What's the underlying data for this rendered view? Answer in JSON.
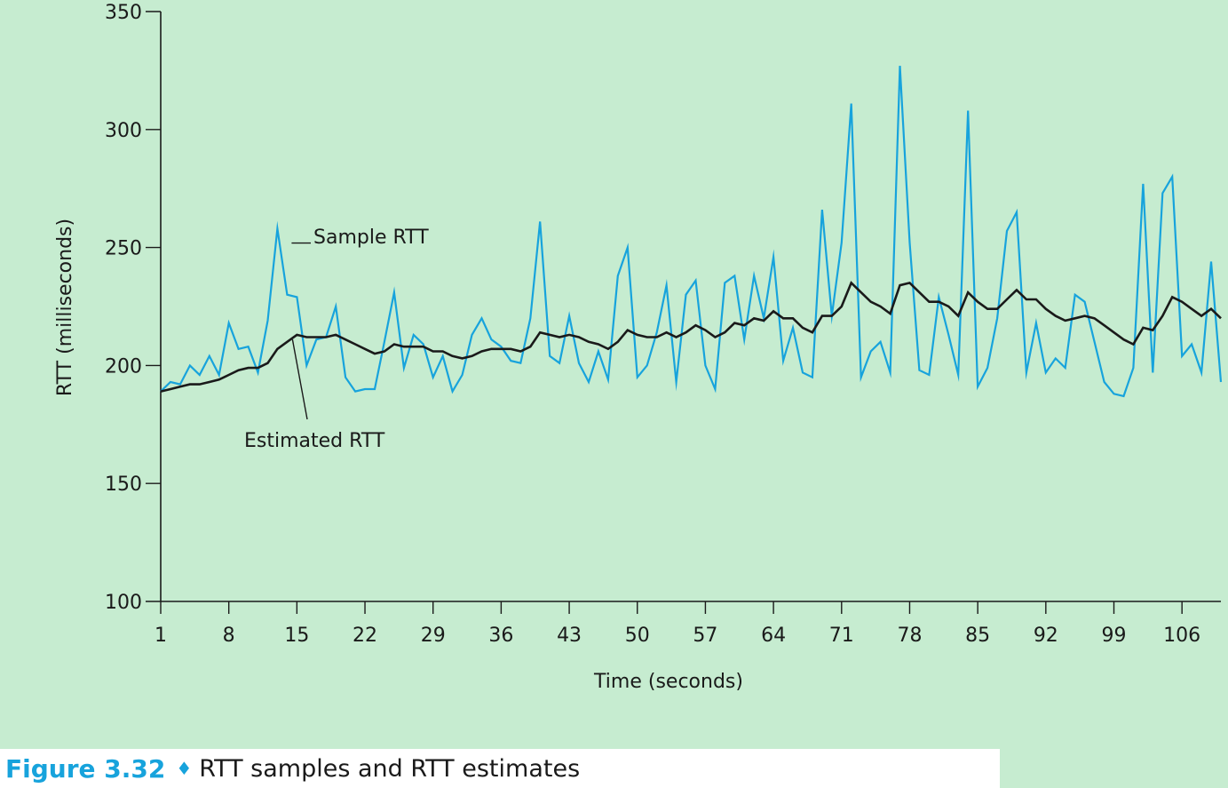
{
  "chart_data": {
    "type": "line",
    "xlabel": "Time (seconds)",
    "ylabel": "RTT (milliseconds)",
    "xlim": [
      1,
      110
    ],
    "ylim": [
      100,
      350
    ],
    "xticks": [
      1,
      8,
      15,
      22,
      29,
      36,
      43,
      50,
      57,
      64,
      71,
      78,
      85,
      92,
      99,
      106
    ],
    "yticks": [
      100,
      150,
      200,
      250,
      300,
      350
    ],
    "colors": {
      "sample": "#17a3dc",
      "estimated": "#1a1a1a",
      "axis": "#1a1a1a"
    },
    "series": [
      {
        "name": "Sample RTT",
        "x": [
          1,
          2,
          3,
          4,
          5,
          6,
          7,
          8,
          9,
          10,
          11,
          12,
          13,
          14,
          15,
          16,
          17,
          18,
          19,
          20,
          21,
          22,
          23,
          24,
          25,
          26,
          27,
          28,
          29,
          30,
          31,
          32,
          33,
          34,
          35,
          36,
          37,
          38,
          39,
          40,
          41,
          42,
          43,
          44,
          45,
          46,
          47,
          48,
          49,
          50,
          51,
          52,
          53,
          54,
          55,
          56,
          57,
          58,
          59,
          60,
          61,
          62,
          63,
          64,
          65,
          66,
          67,
          68,
          69,
          70,
          71,
          72,
          73,
          74,
          75,
          76,
          77,
          78,
          79,
          80,
          81,
          82,
          83,
          84,
          85,
          86,
          87,
          88,
          89,
          90,
          91,
          92,
          93,
          94,
          95,
          96,
          97,
          98,
          99,
          100,
          101,
          102,
          103,
          104,
          105,
          106,
          107,
          108,
          109,
          110
        ],
        "values": [
          189,
          193,
          192,
          200,
          196,
          204,
          196,
          218,
          207,
          208,
          197,
          219,
          258,
          230,
          229,
          200,
          211,
          212,
          225,
          195,
          189,
          190,
          190,
          210,
          231,
          199,
          213,
          209,
          195,
          204,
          189,
          196,
          213,
          220,
          211,
          208,
          202,
          201,
          220,
          261,
          204,
          201,
          221,
          201,
          193,
          206,
          194,
          238,
          250,
          195,
          200,
          214,
          234,
          193,
          230,
          236,
          200,
          190,
          235,
          238,
          211,
          238,
          220,
          246,
          202,
          216,
          197,
          195,
          266,
          221,
          252,
          311,
          195,
          206,
          210,
          197,
          327,
          252,
          198,
          196,
          229,
          213,
          196,
          308,
          191,
          199,
          220,
          257,
          265,
          197,
          218,
          197,
          203,
          199,
          230,
          227,
          210,
          193,
          188,
          187,
          199,
          277,
          197,
          273,
          280,
          204,
          209,
          197,
          244,
          193
        ]
      },
      {
        "name": "Estimated RTT",
        "x": [
          1,
          2,
          3,
          4,
          5,
          6,
          7,
          8,
          9,
          10,
          11,
          12,
          13,
          14,
          15,
          16,
          17,
          18,
          19,
          20,
          21,
          22,
          23,
          24,
          25,
          26,
          27,
          28,
          29,
          30,
          31,
          32,
          33,
          34,
          35,
          36,
          37,
          38,
          39,
          40,
          41,
          42,
          43,
          44,
          45,
          46,
          47,
          48,
          49,
          50,
          51,
          52,
          53,
          54,
          55,
          56,
          57,
          58,
          59,
          60,
          61,
          62,
          63,
          64,
          65,
          66,
          67,
          68,
          69,
          70,
          71,
          72,
          73,
          74,
          75,
          76,
          77,
          78,
          79,
          80,
          81,
          82,
          83,
          84,
          85,
          86,
          87,
          88,
          89,
          90,
          91,
          92,
          93,
          94,
          95,
          96,
          97,
          98,
          99,
          100,
          101,
          102,
          103,
          104,
          105,
          106,
          107,
          108,
          109,
          110
        ],
        "values": [
          189,
          190,
          191,
          192,
          192,
          193,
          194,
          196,
          198,
          199,
          199,
          201,
          207,
          210,
          213,
          212,
          212,
          212,
          213,
          211,
          209,
          207,
          205,
          206,
          209,
          208,
          208,
          208,
          206,
          206,
          204,
          203,
          204,
          206,
          207,
          207,
          207,
          206,
          208,
          214,
          213,
          212,
          213,
          212,
          210,
          209,
          207,
          210,
          215,
          213,
          212,
          212,
          214,
          212,
          214,
          217,
          215,
          212,
          214,
          218,
          217,
          220,
          219,
          223,
          220,
          220,
          216,
          214,
          221,
          221,
          225,
          235,
          231,
          227,
          225,
          222,
          234,
          235,
          231,
          227,
          227,
          225,
          221,
          231,
          227,
          224,
          224,
          228,
          232,
          228,
          228,
          224,
          221,
          219,
          220,
          221,
          220,
          217,
          214,
          211,
          209,
          216,
          215,
          221,
          229,
          227,
          224,
          221,
          224,
          220
        ]
      }
    ],
    "annotations": [
      {
        "text": "Sample RTT",
        "points_to": {
          "series": "Sample RTT",
          "x": 14,
          "y": 250
        }
      },
      {
        "text": "Estimated RTT",
        "points_to": {
          "series": "Estimated RTT",
          "x": 14,
          "y": 211
        }
      }
    ]
  },
  "caption": {
    "figure_label": "Figure 3.32",
    "diamond": "♦",
    "text": "RTT samples and RTT estimates"
  }
}
